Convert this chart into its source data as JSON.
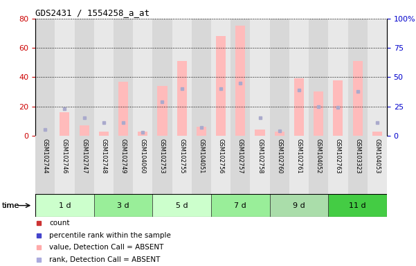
{
  "title": "GDS2431 / 1554258_a_at",
  "samples": [
    "GSM102744",
    "GSM102746",
    "GSM102747",
    "GSM102748",
    "GSM102749",
    "GSM104060",
    "GSM102753",
    "GSM102755",
    "GSM104051",
    "GSM102756",
    "GSM102757",
    "GSM102758",
    "GSM102760",
    "GSM102761",
    "GSM104052",
    "GSM102763",
    "GSM103323",
    "GSM104053"
  ],
  "groups": [
    {
      "label": "1 d",
      "indices": [
        0,
        1,
        2
      ],
      "color": "#ccffcc"
    },
    {
      "label": "3 d",
      "indices": [
        3,
        4,
        5
      ],
      "color": "#99ee99"
    },
    {
      "label": "5 d",
      "indices": [
        6,
        7,
        8
      ],
      "color": "#ccffcc"
    },
    {
      "label": "7 d",
      "indices": [
        9,
        10,
        11
      ],
      "color": "#99ee99"
    },
    {
      "label": "9 d",
      "indices": [
        12,
        13,
        14
      ],
      "color": "#aaddaa"
    },
    {
      "label": "11 d",
      "indices": [
        15,
        16,
        17
      ],
      "color": "#44cc44"
    }
  ],
  "pink_bars": [
    0,
    16,
    7,
    3,
    37,
    3,
    34,
    51,
    6,
    68,
    75,
    4,
    3,
    39,
    30,
    38,
    51,
    3
  ],
  "blue_dots": [
    5,
    23,
    15,
    11,
    11,
    3,
    29,
    40,
    7,
    40,
    45,
    15,
    4,
    39,
    25,
    24,
    38,
    11
  ],
  "ylim_left": [
    0,
    80
  ],
  "ylim_right": [
    0,
    100
  ],
  "yticks_left": [
    0,
    20,
    40,
    60,
    80
  ],
  "yticks_right": [
    0,
    25,
    50,
    75,
    100
  ],
  "ytick_labels_right": [
    "0",
    "25",
    "50",
    "75",
    "100%"
  ],
  "legend_items": [
    {
      "color": "#cc3333",
      "label": "count"
    },
    {
      "color": "#4444cc",
      "label": "percentile rank within the sample"
    },
    {
      "color": "#ffaaaa",
      "label": "value, Detection Call = ABSENT"
    },
    {
      "color": "#aaaadd",
      "label": "rank, Detection Call = ABSENT"
    }
  ],
  "bg_color": "#ffffff",
  "bar_color": "#ffbbbb",
  "dot_color": "#aaaacc",
  "axis_color_left": "#cc0000",
  "axis_color_right": "#0000cc",
  "col_bg_even": "#d8d8d8",
  "col_bg_odd": "#e8e8e8",
  "time_label": "time"
}
